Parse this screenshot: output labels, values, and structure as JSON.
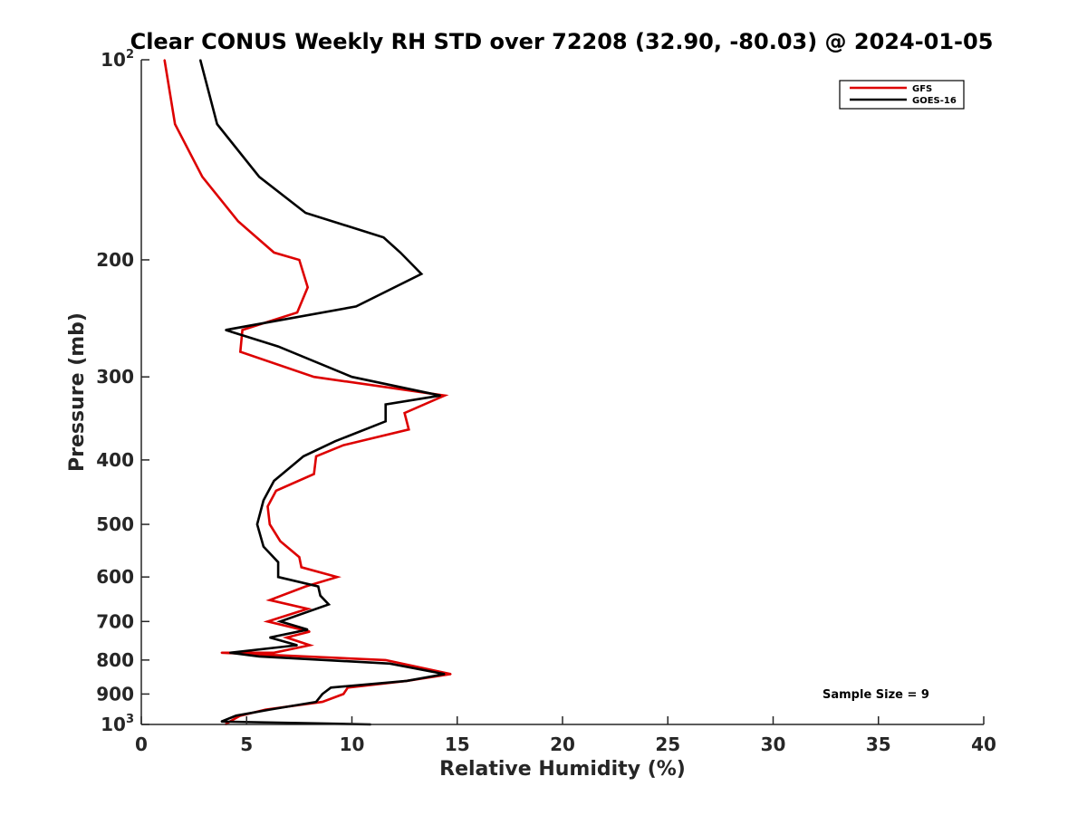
{
  "chart_data": {
    "type": "line",
    "title": "Clear CONUS Weekly RH STD over 72208 (32.90, -80.03) @ 2024-01-05",
    "xlabel": "Relative Humidity (%)",
    "ylabel": "Pressure (mb)",
    "xlim": [
      0,
      40
    ],
    "ylim": [
      100,
      1000
    ],
    "y_scale": "log",
    "y_reversed": true,
    "grid": false,
    "legend_placement": "top-right",
    "x_ticks": [
      "0",
      "5",
      "10",
      "15",
      "20",
      "25",
      "30",
      "35",
      "40"
    ],
    "y_ticks": [
      {
        "value": 100,
        "base": "10",
        "exp": "2"
      },
      {
        "value": 200,
        "label": "200"
      },
      {
        "value": 300,
        "label": "300"
      },
      {
        "value": 400,
        "label": "400"
      },
      {
        "value": 500,
        "label": "500"
      },
      {
        "value": 600,
        "label": "600"
      },
      {
        "value": 700,
        "label": "700"
      },
      {
        "value": 800,
        "label": "800"
      },
      {
        "value": 900,
        "label": "900"
      },
      {
        "value": 1000,
        "base": "10",
        "exp": "3"
      }
    ],
    "annotation": "Sample Size = 9",
    "series": [
      {
        "name": "GFS",
        "color": "#dd0000",
        "points": [
          [
            1.1,
            100
          ],
          [
            1.6,
            125
          ],
          [
            2.9,
            150
          ],
          [
            4.6,
            175
          ],
          [
            6.3,
            195
          ],
          [
            7.5,
            200
          ],
          [
            7.9,
            220
          ],
          [
            7.4,
            240
          ],
          [
            4.8,
            255
          ],
          [
            4.7,
            275
          ],
          [
            8.2,
            300
          ],
          [
            14.4,
            320
          ],
          [
            12.5,
            340
          ],
          [
            12.7,
            360
          ],
          [
            9.6,
            380
          ],
          [
            8.3,
            395
          ],
          [
            8.2,
            420
          ],
          [
            6.4,
            445
          ],
          [
            6.0,
            470
          ],
          [
            6.1,
            500
          ],
          [
            6.6,
            530
          ],
          [
            7.5,
            560
          ],
          [
            7.6,
            580
          ],
          [
            9.3,
            600
          ],
          [
            7.8,
            620
          ],
          [
            6.1,
            650
          ],
          [
            7.9,
            670
          ],
          [
            6.0,
            700
          ],
          [
            8.0,
            725
          ],
          [
            6.9,
            740
          ],
          [
            8.0,
            760
          ],
          [
            6.3,
            780
          ],
          [
            3.8,
            780
          ],
          [
            11.6,
            800
          ],
          [
            14.7,
            840
          ],
          [
            12.6,
            860
          ],
          [
            9.8,
            880
          ],
          [
            9.6,
            900
          ],
          [
            8.6,
            925
          ],
          [
            5.9,
            950
          ],
          [
            4.7,
            970
          ],
          [
            4.2,
            990
          ],
          [
            4.0,
            1000
          ]
        ]
      },
      {
        "name": "GOES-16",
        "color": "#000000",
        "points": [
          [
            2.8,
            100
          ],
          [
            3.6,
            125
          ],
          [
            5.6,
            150
          ],
          [
            7.8,
            170
          ],
          [
            11.5,
            185
          ],
          [
            12.3,
            195
          ],
          [
            13.3,
            210
          ],
          [
            10.2,
            235
          ],
          [
            4.0,
            255
          ],
          [
            6.5,
            270
          ],
          [
            10.0,
            300
          ],
          [
            14.2,
            320
          ],
          [
            11.6,
            330
          ],
          [
            11.6,
            350
          ],
          [
            9.2,
            375
          ],
          [
            7.7,
            395
          ],
          [
            6.3,
            430
          ],
          [
            5.8,
            460
          ],
          [
            5.5,
            500
          ],
          [
            5.8,
            540
          ],
          [
            6.5,
            570
          ],
          [
            6.5,
            600
          ],
          [
            8.4,
            620
          ],
          [
            8.5,
            640
          ],
          [
            8.9,
            660
          ],
          [
            6.6,
            700
          ],
          [
            7.9,
            720
          ],
          [
            6.1,
            740
          ],
          [
            7.4,
            760
          ],
          [
            4.2,
            780
          ],
          [
            5.6,
            790
          ],
          [
            11.8,
            810
          ],
          [
            14.4,
            840
          ],
          [
            12.6,
            860
          ],
          [
            9.0,
            880
          ],
          [
            8.6,
            900
          ],
          [
            8.3,
            925
          ],
          [
            6.1,
            950
          ],
          [
            4.5,
            970
          ],
          [
            3.8,
            990
          ],
          [
            10.9,
            1000
          ]
        ]
      }
    ]
  }
}
